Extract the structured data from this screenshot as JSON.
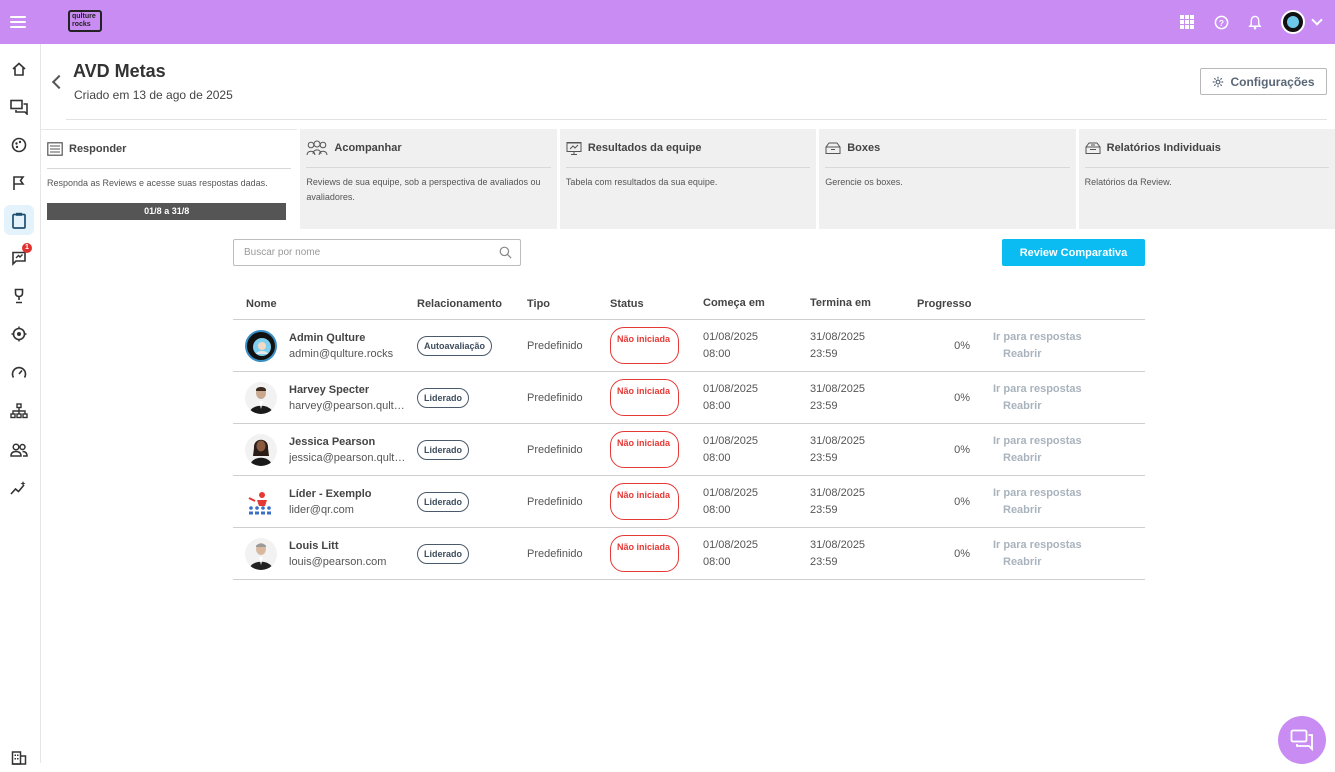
{
  "topbar": {
    "logo_text": "qulture rocks",
    "accent": "#c88cf2"
  },
  "header": {
    "title": "AVD Metas",
    "subtitle": "Criado em 13 de ago de 2025",
    "config_label": "Configurações"
  },
  "sidebar": {
    "notification_count": "1"
  },
  "tabs": [
    {
      "label": "Responder",
      "desc": "Responda as Reviews e acesse suas respostas dadas.",
      "progress": "01/8 a 31/8"
    },
    {
      "label": "Acompanhar",
      "desc": "Reviews de sua equipe, sob a perspectiva de avaliados ou avaliadores."
    },
    {
      "label": "Resultados da equipe",
      "desc": "Tabela com resultados da sua equipe."
    },
    {
      "label": "Boxes",
      "desc": "Gerencie os boxes."
    },
    {
      "label": "Relatórios Individuais",
      "desc": "Relatórios da Review."
    }
  ],
  "search": {
    "placeholder": "Buscar por nome"
  },
  "compare_button": "Review Comparativa",
  "table": {
    "headers": [
      "Nome",
      "Relacionamento",
      "Tipo",
      "Status",
      "Começa em",
      "Termina em",
      "Progresso"
    ],
    "rows": [
      {
        "name": "Admin Qulture",
        "email": "admin@qulture.rocks",
        "rel": "Autoavaliação",
        "tipo": "Predefinido",
        "status": "Não iniciada",
        "start_date": "01/08/2025",
        "start_time": "08:00",
        "end_date": "31/08/2025",
        "end_time": "23:59",
        "progress": "0%",
        "action1": "Ir para respostas",
        "action2": "Reabrir"
      },
      {
        "name": "Harvey Specter",
        "email": "harvey@pearson.qult…",
        "rel": "Liderado",
        "tipo": "Predefinido",
        "status": "Não iniciada",
        "start_date": "01/08/2025",
        "start_time": "08:00",
        "end_date": "31/08/2025",
        "end_time": "23:59",
        "progress": "0%",
        "action1": "Ir para respostas",
        "action2": "Reabrir"
      },
      {
        "name": "Jessica Pearson",
        "email": "jessica@pearson.qult…",
        "rel": "Liderado",
        "tipo": "Predefinido",
        "status": "Não iniciada",
        "start_date": "01/08/2025",
        "start_time": "08:00",
        "end_date": "31/08/2025",
        "end_time": "23:59",
        "progress": "0%",
        "action1": "Ir para respostas",
        "action2": "Reabrir"
      },
      {
        "name": "Líder - Exemplo",
        "email": "lider@qr.com",
        "rel": "Liderado",
        "tipo": "Predefinido",
        "status": "Não iniciada",
        "start_date": "01/08/2025",
        "start_time": "08:00",
        "end_date": "31/08/2025",
        "end_time": "23:59",
        "progress": "0%",
        "action1": "Ir para respostas",
        "action2": "Reabrir"
      },
      {
        "name": "Louis Litt",
        "email": "louis@pearson.com",
        "rel": "Liderado",
        "tipo": "Predefinido",
        "status": "Não iniciada",
        "start_date": "01/08/2025",
        "start_time": "08:00",
        "end_date": "31/08/2025",
        "end_time": "23:59",
        "progress": "0%",
        "action1": "Ir para respostas",
        "action2": "Reabrir"
      }
    ]
  }
}
